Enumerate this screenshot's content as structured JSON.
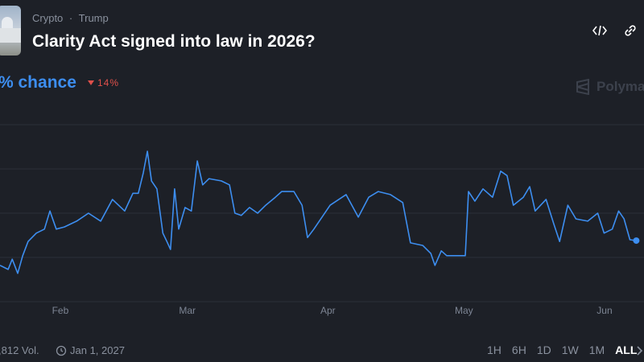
{
  "header": {
    "category": "Crypto",
    "separator": "·",
    "tag": "Trump",
    "title": "Clarity Act signed into law in 2026?"
  },
  "chance_label": "% chance",
  "change": "14%",
  "brand": "Polyma",
  "chart_data": {
    "type": "line",
    "x": [
      18.7,
      20.5,
      21.4,
      22.6,
      23.7,
      24.9,
      26.7,
      28.5,
      29.7,
      31.1,
      32.9,
      35.6,
      38.2,
      40.9,
      43.5,
      46.2,
      48.0,
      49.2,
      50.3,
      51.2,
      52.1,
      53.3,
      54.6,
      55.5,
      56.3,
      57.2,
      58.1,
      59.5,
      60.9,
      62.2,
      63.4,
      64.8,
      67.5,
      69.3,
      70.5,
      71.9,
      73.7,
      75.5,
      77.3,
      79.4,
      80.8,
      83.5,
      85.3,
      86.5,
      87.9,
      91.5,
      95.0,
      97.7,
      100.0,
      102.1,
      104.8,
      107.5,
      109.2,
      111.9,
      113.7,
      114.6,
      116.0,
      117.2,
      119.0,
      121.3,
      122.0,
      123.4,
      125.2,
      127.3,
      129.1,
      130.5,
      131.9,
      134.1,
      135.5,
      136.7,
      139.1,
      140.8,
      142.1,
      143.9,
      145.7,
      148.3,
      150.5,
      151.9,
      153.7,
      155.1,
      156.3,
      157.6,
      159.0
    ],
    "series": [
      {
        "color": "#3d8ef0",
        "values": [
          18.2,
          17.3,
          19.6,
          16.4,
          20.4,
          23.6,
          25.5,
          26.4,
          30.5,
          26.4,
          26.9,
          28.2,
          30.0,
          28.2,
          33.1,
          30.5,
          34.5,
          34.5,
          39.1,
          44.0,
          37.3,
          35.5,
          25.5,
          23.6,
          21.8,
          35.5,
          26.4,
          31.3,
          30.5,
          41.8,
          36.4,
          37.8,
          37.3,
          36.4,
          30.0,
          29.5,
          31.3,
          30.0,
          31.8,
          33.6,
          34.9,
          34.9,
          31.8,
          24.5,
          26.4,
          31.8,
          34.2,
          29.1,
          33.6,
          34.9,
          34.2,
          32.4,
          23.3,
          22.7,
          20.9,
          18.2,
          21.5,
          20.4,
          20.4,
          20.4,
          34.9,
          32.7,
          35.5,
          33.6,
          39.5,
          38.5,
          31.8,
          33.6,
          36.0,
          30.5,
          33.1,
          27.6,
          23.6,
          31.8,
          28.7,
          28.2,
          30.0,
          25.5,
          26.4,
          30.5,
          28.7,
          24.0,
          23.8
        ]
      }
    ],
    "xlim": [
      18.7,
      160.7
    ],
    "xticks": [
      {
        "value": 32,
        "label": "Feb"
      },
      {
        "value": 60,
        "label": "Mar"
      },
      {
        "value": 91,
        "label": "Apr"
      },
      {
        "value": 121,
        "label": "May"
      },
      {
        "value": 152,
        "label": "Jun"
      }
    ],
    "ylim": [
      0,
      50
    ],
    "yticks": [
      10,
      20,
      30,
      40,
      50
    ],
    "grid": true
  },
  "footer": {
    "volume": ",812 Vol.",
    "end_date": "Jan 1, 2027",
    "ranges": [
      "1H",
      "6H",
      "1D",
      "1W",
      "1M",
      "ALL"
    ]
  }
}
